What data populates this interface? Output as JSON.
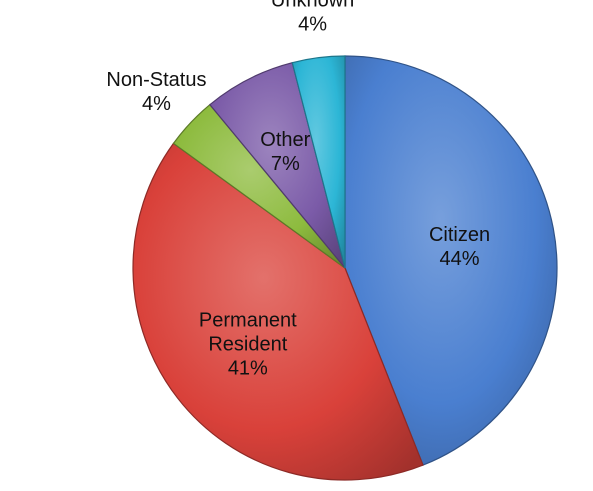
{
  "chart_data": {
    "type": "pie",
    "slices": [
      {
        "name": "Citizen",
        "value": 44,
        "value_label": "44%",
        "color": "#4a7fd0"
      },
      {
        "name": "Permanent Resident",
        "name_lines": [
          "Permanent",
          "Resident"
        ],
        "value": 41,
        "value_label": "41%",
        "color": "#d9413a"
      },
      {
        "name": "Non-Status",
        "value": 4,
        "value_label": "4%",
        "color": "#8dbb3e"
      },
      {
        "name": "Other",
        "value": 7,
        "value_label": "7%",
        "color": "#7b5ba8"
      },
      {
        "name": "Unknown",
        "value": 4,
        "value_label": "4%",
        "color": "#2cb6d6"
      }
    ],
    "start_angle_deg": 0,
    "direction": "clockwise",
    "legend": "none",
    "style": "3d-shaded"
  }
}
